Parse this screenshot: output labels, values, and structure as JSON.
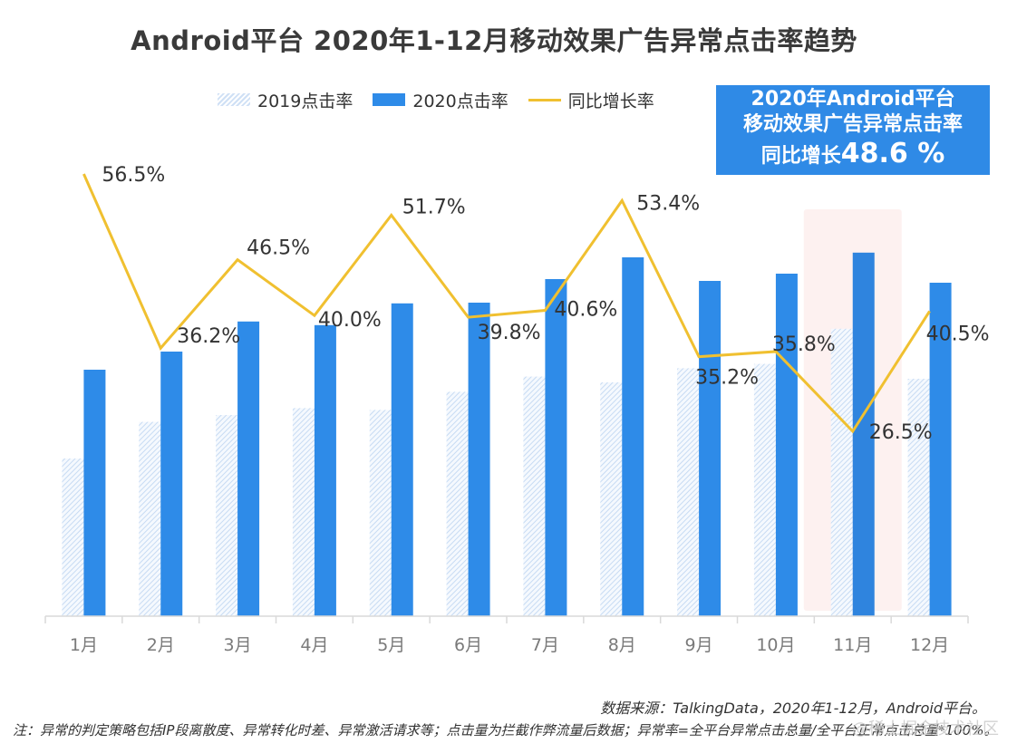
{
  "title": "Android平台  2020年1-12月移动效果广告异常点击率趋势",
  "legend": {
    "s2019": "2019点击率",
    "s2020": "2020点击率",
    "growth": "同比增长率"
  },
  "callout": {
    "line1": "2020年Android平台",
    "line2": "移动效果广告异常点击率",
    "line3_prefix": "同比增长",
    "line3_value": "48.6 %"
  },
  "colors": {
    "bar2019": "#cfe0f5",
    "bar2020": "#2e8be8",
    "line": "#f0c030",
    "highlight": "#fdf1f0",
    "callout_bg": "#2f8ae6"
  },
  "chart_data": {
    "type": "bar",
    "title": "Android平台  2020年1-12月移动效果广告异常点击率趋势",
    "xlabel": "",
    "ylabel": "",
    "categories": [
      "1月",
      "2月",
      "3月",
      "4月",
      "5月",
      "6月",
      "7月",
      "8月",
      "9月",
      "10月",
      "11月",
      "12月"
    ],
    "series": [
      {
        "name": "2019点击率",
        "type": "bar",
        "values": [
          43.5,
          53.6,
          55.5,
          57.4,
          56.9,
          61.9,
          66.1,
          64.5,
          68.4,
          69.6,
          79.3,
          65.5
        ]
      },
      {
        "name": "2020点击率",
        "type": "bar",
        "values": [
          68.0,
          73.0,
          81.3,
          80.3,
          86.3,
          86.5,
          93.0,
          99.0,
          92.5,
          94.5,
          100.3,
          92.0
        ]
      },
      {
        "name": "同比增长率",
        "type": "line",
        "values": [
          56.5,
          36.2,
          46.5,
          40.0,
          51.7,
          39.8,
          40.6,
          53.4,
          35.2,
          35.8,
          26.5,
          40.5
        ],
        "labels": [
          "56.5%",
          "36.2%",
          "46.5%",
          "40.0%",
          "51.7%",
          "39.8%",
          "40.6%",
          "53.4%",
          "35.2%",
          "35.8%",
          "26.5%",
          "40.5%"
        ]
      }
    ],
    "bar_value_note": "relative index (no y-axis shown)",
    "line_range": [
      20,
      60
    ],
    "highlight_category": "11月",
    "grid": false,
    "legend_position": "top"
  },
  "footer": {
    "source": "数据来源：TalkingData，2020年1-12月，Android平台。",
    "note": "注：异常的判定策略包括IP段离散度、异常转化时差、异常激活请求等；点击量为拦截作弊流量后数据；异常率=全平台异常点击总量/全平台正常点击总量*100%。",
    "watermark": "@稀土掘金技术社区"
  }
}
